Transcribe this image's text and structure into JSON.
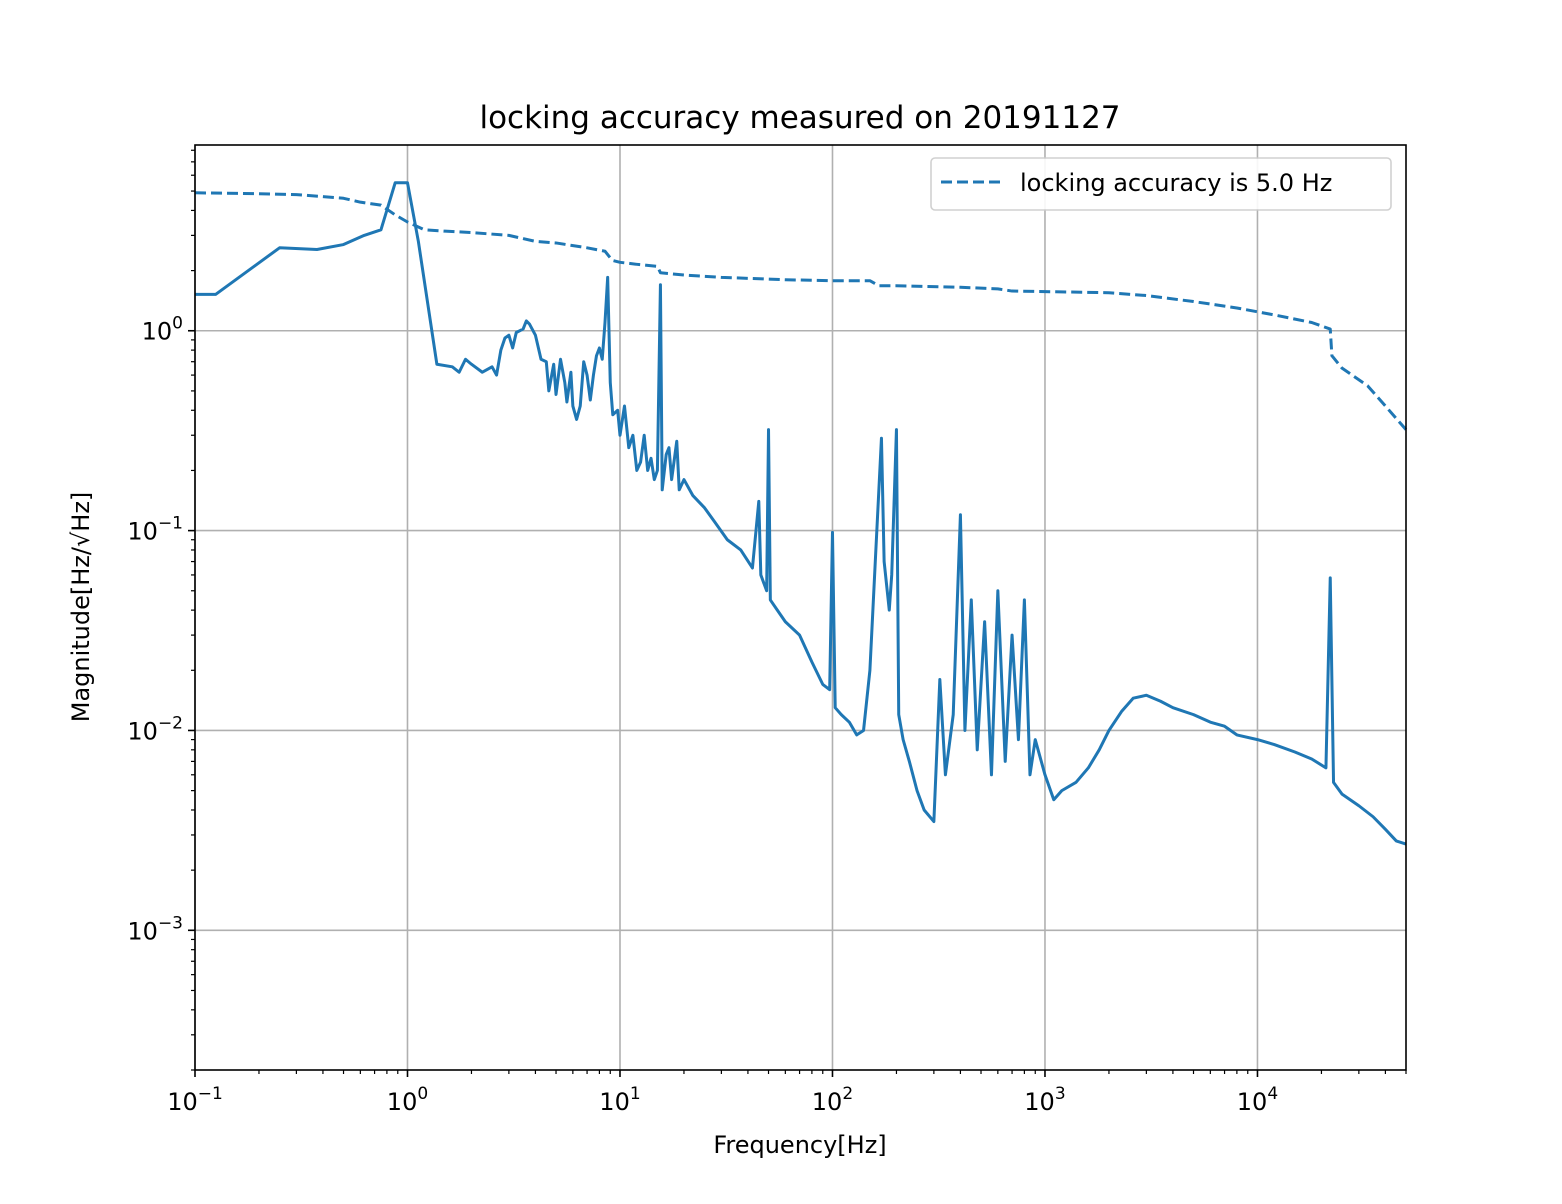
{
  "chart_data": {
    "type": "line",
    "title": "locking accuracy measured on 20191127",
    "xlabel": "Frequency[Hz]",
    "ylabel": "Magnitude[Hz/√Hz]",
    "xscale": "log",
    "yscale": "log",
    "xlim": [
      0.1,
      50000
    ],
    "ylim": [
      0.0002,
      8.5
    ],
    "grid": true,
    "legend_position": "top-right",
    "x_ticks": [
      {
        "base": "10",
        "exp": "−1",
        "value": 0.1
      },
      {
        "base": "10",
        "exp": "0",
        "value": 1
      },
      {
        "base": "10",
        "exp": "1",
        "value": 10
      },
      {
        "base": "10",
        "exp": "2",
        "value": 100
      },
      {
        "base": "10",
        "exp": "3",
        "value": 1000
      },
      {
        "base": "10",
        "exp": "4",
        "value": 10000
      }
    ],
    "y_ticks": [
      {
        "base": "10",
        "exp": "−3",
        "value": 0.001
      },
      {
        "base": "10",
        "exp": "−2",
        "value": 0.01
      },
      {
        "base": "10",
        "exp": "−1",
        "value": 0.1
      },
      {
        "base": "10",
        "exp": "0",
        "value": 1
      }
    ],
    "series": [
      {
        "name": "",
        "style": "solid",
        "color": "#1f77b4",
        "points": [
          [
            0.1,
            1.52
          ],
          [
            0.125,
            1.52
          ],
          [
            0.25,
            2.6
          ],
          [
            0.375,
            2.55
          ],
          [
            0.5,
            2.7
          ],
          [
            0.625,
            3.0
          ],
          [
            0.75,
            3.2
          ],
          [
            0.875,
            5.5
          ],
          [
            1.0,
            5.5
          ],
          [
            1.125,
            2.8
          ],
          [
            1.375,
            0.68
          ],
          [
            1.625,
            0.66
          ],
          [
            1.75,
            0.62
          ],
          [
            1.875,
            0.72
          ],
          [
            2.0,
            0.68
          ],
          [
            2.25,
            0.62
          ],
          [
            2.5,
            0.66
          ],
          [
            2.625,
            0.6
          ],
          [
            2.75,
            0.8
          ],
          [
            2.875,
            0.92
          ],
          [
            3.0,
            0.95
          ],
          [
            3.125,
            0.82
          ],
          [
            3.25,
            0.98
          ],
          [
            3.5,
            1.02
          ],
          [
            3.625,
            1.12
          ],
          [
            3.75,
            1.08
          ],
          [
            4.0,
            0.95
          ],
          [
            4.25,
            0.72
          ],
          [
            4.5,
            0.7
          ],
          [
            4.625,
            0.5
          ],
          [
            4.875,
            0.68
          ],
          [
            5.0,
            0.48
          ],
          [
            5.25,
            0.72
          ],
          [
            5.5,
            0.55
          ],
          [
            5.625,
            0.44
          ],
          [
            5.875,
            0.62
          ],
          [
            6.0,
            0.42
          ],
          [
            6.25,
            0.36
          ],
          [
            6.5,
            0.42
          ],
          [
            6.75,
            0.7
          ],
          [
            7.0,
            0.6
          ],
          [
            7.25,
            0.45
          ],
          [
            7.5,
            0.6
          ],
          [
            7.75,
            0.75
          ],
          [
            8.0,
            0.82
          ],
          [
            8.25,
            0.72
          ],
          [
            8.5,
            1.1
          ],
          [
            8.75,
            1.85
          ],
          [
            9.0,
            0.55
          ],
          [
            9.25,
            0.38
          ],
          [
            9.75,
            0.4
          ],
          [
            10.0,
            0.3
          ],
          [
            10.5,
            0.42
          ],
          [
            11.0,
            0.26
          ],
          [
            11.5,
            0.3
          ],
          [
            12.0,
            0.2
          ],
          [
            12.5,
            0.22
          ],
          [
            13.0,
            0.3
          ],
          [
            13.5,
            0.2
          ],
          [
            14.0,
            0.23
          ],
          [
            14.5,
            0.18
          ],
          [
            15.0,
            0.2
          ],
          [
            15.5,
            1.7
          ],
          [
            15.8,
            0.16
          ],
          [
            16.5,
            0.24
          ],
          [
            17.0,
            0.26
          ],
          [
            17.5,
            0.18
          ],
          [
            18.5,
            0.28
          ],
          [
            19.0,
            0.16
          ],
          [
            20.0,
            0.18
          ],
          [
            22.0,
            0.15
          ],
          [
            25.0,
            0.13
          ],
          [
            28.0,
            0.11
          ],
          [
            32.0,
            0.09
          ],
          [
            37.0,
            0.08
          ],
          [
            42.0,
            0.065
          ],
          [
            45.0,
            0.14
          ],
          [
            46.0,
            0.06
          ],
          [
            49.0,
            0.05
          ],
          [
            50.0,
            0.32
          ],
          [
            51.0,
            0.045
          ],
          [
            55.0,
            0.04
          ],
          [
            60.0,
            0.035
          ],
          [
            70.0,
            0.03
          ],
          [
            80.0,
            0.022
          ],
          [
            90.0,
            0.017
          ],
          [
            97.0,
            0.016
          ],
          [
            100.0,
            0.098
          ],
          [
            103.0,
            0.013
          ],
          [
            110.0,
            0.012
          ],
          [
            120.0,
            0.011
          ],
          [
            130.0,
            0.0095
          ],
          [
            140.0,
            0.01
          ],
          [
            150.0,
            0.02
          ],
          [
            160.0,
            0.08
          ],
          [
            170.0,
            0.29
          ],
          [
            175.0,
            0.07
          ],
          [
            185.0,
            0.04
          ],
          [
            190.0,
            0.06
          ],
          [
            200.0,
            0.32
          ],
          [
            205.0,
            0.012
          ],
          [
            215.0,
            0.009
          ],
          [
            230.0,
            0.007
          ],
          [
            250.0,
            0.005
          ],
          [
            270.0,
            0.004
          ],
          [
            300.0,
            0.0035
          ],
          [
            320.0,
            0.018
          ],
          [
            340.0,
            0.006
          ],
          [
            370.0,
            0.012
          ],
          [
            400.0,
            0.12
          ],
          [
            420.0,
            0.01
          ],
          [
            450.0,
            0.045
          ],
          [
            480.0,
            0.008
          ],
          [
            520.0,
            0.035
          ],
          [
            560.0,
            0.006
          ],
          [
            600.0,
            0.05
          ],
          [
            650.0,
            0.007
          ],
          [
            700.0,
            0.03
          ],
          [
            750.0,
            0.009
          ],
          [
            800.0,
            0.045
          ],
          [
            850.0,
            0.006
          ],
          [
            900.0,
            0.009
          ],
          [
            1000.0,
            0.006
          ],
          [
            1100.0,
            0.0045
          ],
          [
            1200.0,
            0.005
          ],
          [
            1400.0,
            0.0055
          ],
          [
            1600.0,
            0.0065
          ],
          [
            1800.0,
            0.008
          ],
          [
            2000.0,
            0.01
          ],
          [
            2300.0,
            0.0125
          ],
          [
            2600.0,
            0.0145
          ],
          [
            3000.0,
            0.015
          ],
          [
            3500.0,
            0.014
          ],
          [
            4000.0,
            0.013
          ],
          [
            5000.0,
            0.012
          ],
          [
            6000.0,
            0.011
          ],
          [
            7000.0,
            0.0105
          ],
          [
            8000.0,
            0.0095
          ],
          [
            10000.0,
            0.009
          ],
          [
            12000.0,
            0.0085
          ],
          [
            15000.0,
            0.0078
          ],
          [
            18000.0,
            0.0072
          ],
          [
            21000.0,
            0.0065
          ],
          [
            22000.0,
            0.058
          ],
          [
            22800.0,
            0.0055
          ],
          [
            25000.0,
            0.0048
          ],
          [
            30000.0,
            0.0042
          ],
          [
            35000.0,
            0.0037
          ],
          [
            40000.0,
            0.0032
          ],
          [
            45000.0,
            0.0028
          ],
          [
            50000.0,
            0.0027
          ]
        ]
      },
      {
        "name": "locking accuracy is 5.0 Hz",
        "style": "dashed",
        "color": "#1f77b4",
        "points": [
          [
            0.1,
            4.9
          ],
          [
            0.2,
            4.85
          ],
          [
            0.3,
            4.8
          ],
          [
            0.5,
            4.6
          ],
          [
            0.6,
            4.4
          ],
          [
            0.75,
            4.25
          ],
          [
            0.875,
            3.8
          ],
          [
            1.0,
            3.5
          ],
          [
            1.2,
            3.2
          ],
          [
            1.5,
            3.15
          ],
          [
            2.0,
            3.1
          ],
          [
            3.0,
            3.0
          ],
          [
            4.0,
            2.8
          ],
          [
            5.0,
            2.75
          ],
          [
            7.0,
            2.6
          ],
          [
            8.5,
            2.5
          ],
          [
            9.2,
            2.25
          ],
          [
            10.0,
            2.2
          ],
          [
            12.0,
            2.15
          ],
          [
            15.0,
            2.1
          ],
          [
            15.5,
            1.95
          ],
          [
            20.0,
            1.9
          ],
          [
            30.0,
            1.85
          ],
          [
            60.0,
            1.8
          ],
          [
            100.0,
            1.78
          ],
          [
            150.0,
            1.78
          ],
          [
            165.0,
            1.68
          ],
          [
            200.0,
            1.68
          ],
          [
            400.0,
            1.65
          ],
          [
            600.0,
            1.62
          ],
          [
            700.0,
            1.58
          ],
          [
            1000.0,
            1.57
          ],
          [
            2000.0,
            1.55
          ],
          [
            3000.0,
            1.5
          ],
          [
            5000.0,
            1.4
          ],
          [
            8000.0,
            1.3
          ],
          [
            12000.0,
            1.2
          ],
          [
            18000.0,
            1.1
          ],
          [
            22000.0,
            1.02
          ],
          [
            22400.0,
            0.75
          ],
          [
            25000.0,
            0.65
          ],
          [
            33000.0,
            0.53
          ],
          [
            40000.0,
            0.42
          ],
          [
            50000.0,
            0.32
          ]
        ]
      }
    ]
  }
}
